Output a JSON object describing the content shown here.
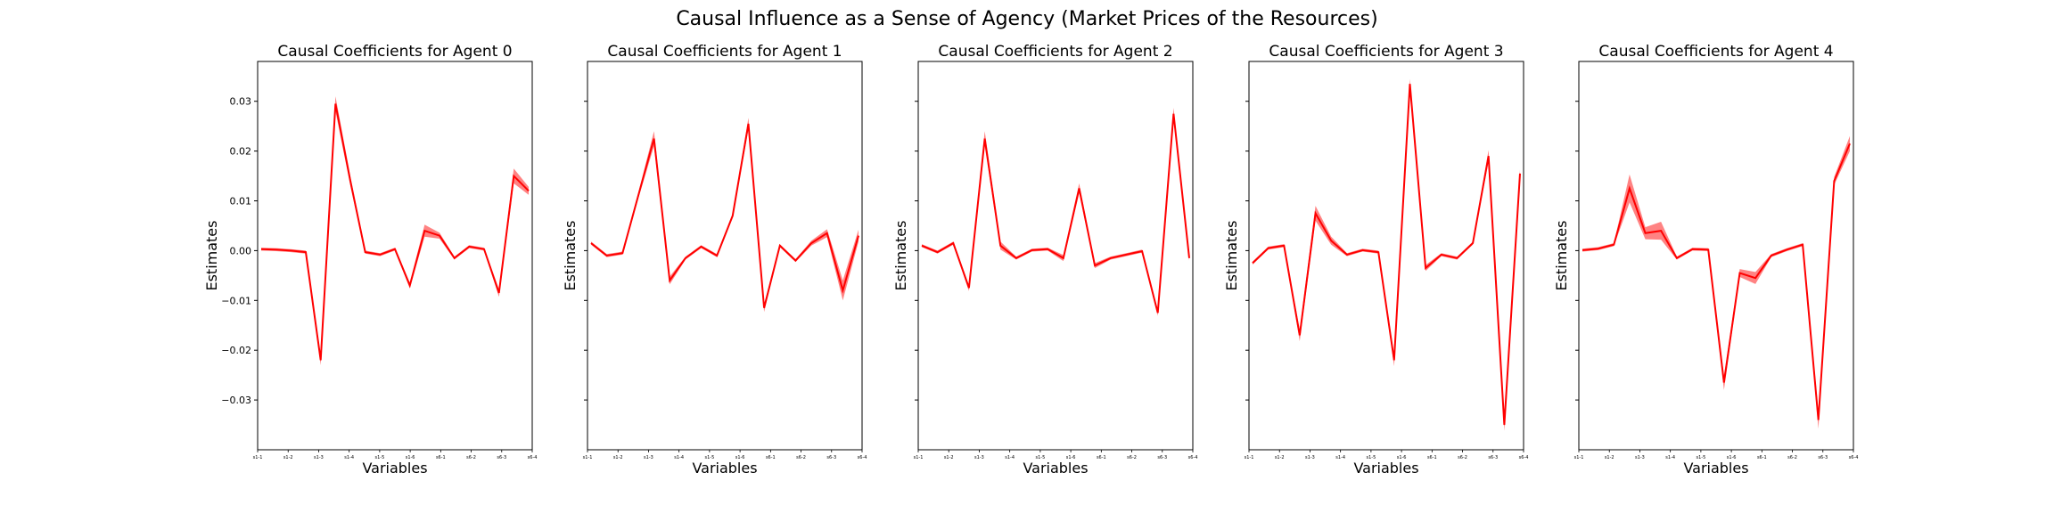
{
  "figure": {
    "title": "Causal Influence as a Sense of Agency (Market Prices of the Resources)",
    "line_color": "#ff0000",
    "band_color": "#ff5a5a"
  },
  "chart_data": [
    {
      "type": "line",
      "title": "Causal Coefficients for Agent 0",
      "xlabel": "Variables",
      "ylabel": "Estimates",
      "ylim": [
        -0.04,
        0.038
      ],
      "yticks": [
        -0.03,
        -0.02,
        -0.01,
        0.0,
        0.01,
        0.02,
        0.03
      ],
      "ytick_labels": [
        "−0.03",
        "−0.02",
        "−0.01",
        "0.00",
        "0.01",
        "0.02",
        "0.03"
      ],
      "xtick_labels": [
        "s1-1",
        "s1-2",
        "s1-3",
        "s1-4",
        "s1-5",
        "s1-6",
        "s6-1",
        "s6-2",
        "s6-3",
        "s6-4"
      ],
      "series": [
        {
          "values": [
            0.0003,
            0.0002,
            0.0,
            -0.0003,
            -0.022,
            0.0295,
            0.014,
            -0.0003,
            -0.0008,
            0.0003,
            -0.007,
            0.004,
            0.003,
            -0.0015,
            0.0008,
            0.0003,
            -0.0085,
            0.015,
            0.012
          ],
          "band": [
            0.0003,
            0.0003,
            0.0003,
            0.0003,
            0.001,
            0.0015,
            0.001,
            0.0003,
            0.0003,
            0.0003,
            0.0006,
            0.0012,
            0.0006,
            0.0003,
            0.0003,
            0.0003,
            0.0008,
            0.0015,
            0.0008
          ]
        }
      ]
    },
    {
      "type": "line",
      "title": "Causal Coefficients for Agent 1",
      "xlabel": "Variables",
      "ylabel": "Estimates",
      "ylim": [
        -0.04,
        0.038
      ],
      "xtick_labels": [
        "s1-1",
        "s1-2",
        "s1-3",
        "s1-4",
        "s1-5",
        "s1-6",
        "s6-1",
        "s6-2",
        "s6-3",
        "s6-4"
      ],
      "series": [
        {
          "values": [
            0.0015,
            -0.001,
            -0.0005,
            0.011,
            0.0225,
            -0.006,
            -0.0015,
            0.0008,
            -0.001,
            0.007,
            0.0255,
            -0.0115,
            0.001,
            -0.002,
            0.0015,
            0.0035,
            -0.008,
            0.003
          ],
          "band": [
            0.0003,
            0.0003,
            0.0003,
            0.0006,
            0.0015,
            0.0008,
            0.0003,
            0.0003,
            0.0003,
            0.0004,
            0.0012,
            0.0008,
            0.0003,
            0.0003,
            0.0005,
            0.0008,
            0.002,
            0.0012
          ]
        }
      ]
    },
    {
      "type": "line",
      "title": "Causal Coefficients for Agent 2",
      "xlabel": "Variables",
      "ylabel": "Estimates",
      "ylim": [
        -0.04,
        0.038
      ],
      "xtick_labels": [
        "s1-1",
        "s1-2",
        "s1-3",
        "s1-4",
        "s1-5",
        "s1-6",
        "s6-1",
        "s6-2",
        "s6-3",
        "s6-4"
      ],
      "series": [
        {
          "values": [
            0.001,
            -0.0003,
            0.0015,
            -0.0075,
            0.0225,
            0.001,
            -0.0015,
            0.0001,
            0.0003,
            -0.0015,
            0.0125,
            -0.003,
            -0.0015,
            -0.0008,
            -0.0001,
            -0.0125,
            0.0275,
            -0.0015
          ],
          "band": [
            0.0003,
            0.0003,
            0.0003,
            0.0006,
            0.0015,
            0.0008,
            0.0003,
            0.0003,
            0.0003,
            0.0006,
            0.001,
            0.0005,
            0.0003,
            0.0003,
            0.0003,
            0.0006,
            0.0012,
            0.0005
          ]
        }
      ]
    },
    {
      "type": "line",
      "title": "Causal Coefficients for Agent 3",
      "xlabel": "Variables",
      "ylabel": "Estimates",
      "ylim": [
        -0.04,
        0.038
      ],
      "xtick_labels": [
        "s1-1",
        "s1-2",
        "s1-3",
        "s1-4",
        "s1-5",
        "s1-6",
        "s6-1",
        "s6-2",
        "s6-3",
        "s6-4"
      ],
      "series": [
        {
          "values": [
            -0.0025,
            0.0005,
            0.001,
            -0.017,
            0.0075,
            0.002,
            -0.0008,
            0.0001,
            -0.0003,
            -0.022,
            0.0335,
            -0.0035,
            -0.0008,
            -0.0015,
            0.0015,
            0.019,
            -0.035,
            0.0155
          ],
          "band": [
            0.0003,
            0.0003,
            0.0003,
            0.0012,
            0.0015,
            0.0008,
            0.0003,
            0.0003,
            0.0003,
            0.0012,
            0.001,
            0.0006,
            0.0003,
            0.0003,
            0.0003,
            0.0012,
            0.0012,
            0.0008
          ]
        }
      ]
    },
    {
      "type": "line",
      "title": "Causal Coefficients for Agent 4",
      "xlabel": "Variables",
      "ylabel": "Estimates",
      "ylim": [
        -0.04,
        0.038
      ],
      "xtick_labels": [
        "s1-1",
        "s1-2",
        "s1-3",
        "s1-4",
        "s1-5",
        "s1-6",
        "s6-1",
        "s6-2",
        "s6-3",
        "s6-4"
      ],
      "series": [
        {
          "values": [
            0.0001,
            0.0004,
            0.0012,
            0.0125,
            0.0035,
            0.004,
            -0.0015,
            0.0003,
            0.0002,
            -0.0265,
            -0.0045,
            -0.0055,
            -0.001,
            0.0002,
            0.0012,
            -0.034,
            0.014,
            0.0215
          ],
          "band": [
            0.0003,
            0.0003,
            0.0003,
            0.0028,
            0.0012,
            0.0018,
            0.0003,
            0.0003,
            0.0003,
            0.0015,
            0.0008,
            0.0012,
            0.0003,
            0.0003,
            0.0003,
            0.0018,
            0.0008,
            0.0015
          ]
        }
      ]
    }
  ]
}
